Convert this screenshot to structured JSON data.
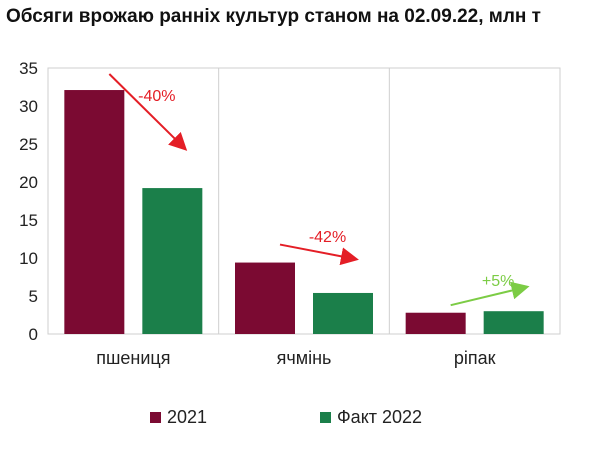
{
  "title": "Обсяги врожаю ранніх культур станом на 02.09.22, млн т",
  "colors": {
    "2021": "#7b0a32",
    "2022": "#1b7f4a",
    "arrow_down": "#e41e26",
    "arrow_up": "#7ccc45",
    "grid": "#cfcfcf"
  },
  "chart_data": {
    "type": "bar",
    "title": "Обсяги врожаю ранніх культур станом на 02.09.22, млн т",
    "categories": [
      "пшениця",
      "ячмінь",
      "ріпак"
    ],
    "series": [
      {
        "name": "2021",
        "values": [
          32.1,
          9.4,
          2.8
        ]
      },
      {
        "name": "Факт 2022",
        "values": [
          19.2,
          5.4,
          3.0
        ]
      }
    ],
    "ylim": [
      0,
      35
    ],
    "yticks": [
      0,
      5,
      10,
      15,
      20,
      25,
      30,
      35
    ],
    "annotations": [
      {
        "category": "пшениця",
        "text": "-40%",
        "direction": "down"
      },
      {
        "category": "ячмінь",
        "text": "-42%",
        "direction": "down"
      },
      {
        "category": "ріпак",
        "text": "+5%",
        "direction": "up"
      }
    ],
    "grid": "vertical separators between categories",
    "legend": "bottom"
  }
}
